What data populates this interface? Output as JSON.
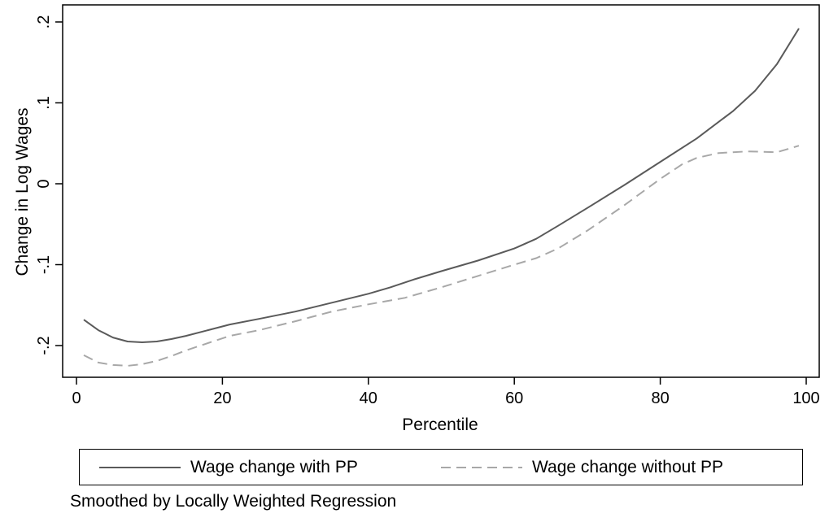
{
  "chart_data": {
    "type": "line",
    "title": "",
    "xlabel": "Percentile",
    "ylabel": "Change in Log Wages",
    "xlim": [
      0,
      100
    ],
    "ylim": [
      -0.24,
      0.2
    ],
    "x_ticks": [
      0,
      20,
      40,
      60,
      80,
      100
    ],
    "x_tick_labels": [
      "0",
      "20",
      "40",
      "60",
      "80",
      "100"
    ],
    "y_ticks": [
      -0.2,
      -0.1,
      0,
      0.1,
      0.2
    ],
    "y_tick_labels": [
      "-.2",
      "-.1",
      "0",
      ".1",
      ".2"
    ],
    "grid": false,
    "legend_position": "bottom",
    "series": [
      {
        "name": "Wage change with PP",
        "color": "#5a5a5a",
        "dash": "solid",
        "x": [
          1,
          3,
          5,
          7,
          9,
          11,
          13,
          15,
          18,
          21,
          25,
          30,
          35,
          40,
          43,
          46,
          50,
          55,
          60,
          63,
          66,
          70,
          75,
          80,
          85,
          90,
          93,
          96,
          99
        ],
        "y": [
          -0.168,
          -0.181,
          -0.19,
          -0.195,
          -0.196,
          -0.195,
          -0.192,
          -0.188,
          -0.181,
          -0.174,
          -0.167,
          -0.158,
          -0.147,
          -0.136,
          -0.128,
          -0.119,
          -0.108,
          -0.095,
          -0.08,
          -0.068,
          -0.052,
          -0.03,
          -0.002,
          0.027,
          0.056,
          0.09,
          0.115,
          0.148,
          0.192
        ]
      },
      {
        "name": "Wage change without PP",
        "color": "#a8a8a8",
        "dash": "dashed",
        "x": [
          1,
          3,
          5,
          7,
          9,
          11,
          13,
          15,
          18,
          21,
          25,
          30,
          35,
          40,
          45,
          50,
          55,
          60,
          63,
          66,
          70,
          75,
          80,
          83,
          85,
          88,
          92,
          96,
          99
        ],
        "y": [
          -0.212,
          -0.221,
          -0.224,
          -0.225,
          -0.223,
          -0.219,
          -0.213,
          -0.206,
          -0.197,
          -0.188,
          -0.181,
          -0.17,
          -0.158,
          -0.149,
          -0.141,
          -0.128,
          -0.114,
          -0.1,
          -0.092,
          -0.08,
          -0.058,
          -0.027,
          0.006,
          0.024,
          0.032,
          0.038,
          0.04,
          0.039,
          0.047
        ]
      }
    ],
    "note": "Smoothed by Locally Weighted Regression"
  }
}
